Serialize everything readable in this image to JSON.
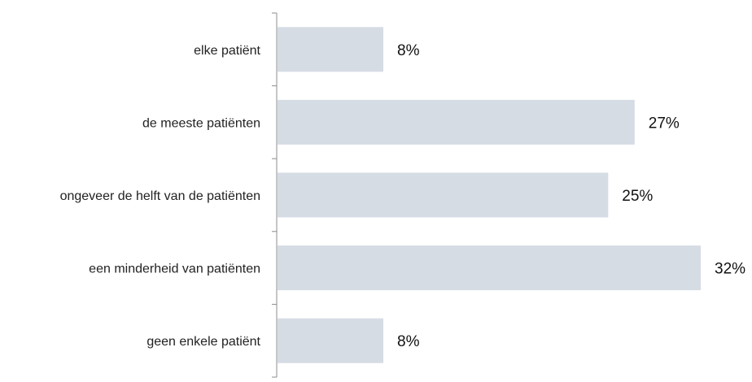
{
  "chart_data": {
    "type": "bar",
    "orientation": "horizontal",
    "categories": [
      "elke patiënt",
      "de meeste patiënten",
      "ongeveer de helft van de patiënten",
      "een minderheid van patiënten",
      "geen enkele patiënt"
    ],
    "values": [
      8,
      27,
      25,
      32,
      8
    ],
    "value_labels": [
      "8%",
      "27%",
      "25%",
      "32%",
      "8%"
    ],
    "xlim": [
      0,
      32
    ],
    "grid": false,
    "legend": "none",
    "colors": {
      "bar": "#d6dce4",
      "axis": "#8c8c8c",
      "text": "#222222"
    }
  }
}
